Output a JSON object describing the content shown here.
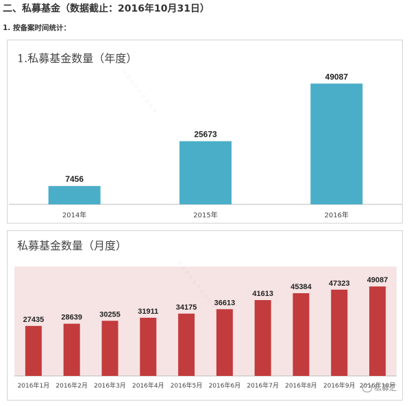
{
  "heading": "二、私募基金（数据截止：2016年10月31日）",
  "subheading": "1. 按备案时间统计：",
  "colors": {
    "annual_bar": "#4aaec9",
    "monthly_bar": "#c23b3d",
    "monthly_bg": "#f6e3e3"
  },
  "chart_data": [
    {
      "type": "bar",
      "title": "1.私募基金数量（年度）",
      "categories": [
        "2014年",
        "2015年",
        "2016年"
      ],
      "values": [
        7456,
        25673,
        49087
      ],
      "xlabel": "",
      "ylabel": "",
      "ylim": [
        0,
        55000
      ],
      "grid": false
    },
    {
      "type": "bar",
      "title": "私募基金数量（月度）",
      "categories": [
        "2016年1月",
        "2016年2月",
        "2016年3月",
        "2016年4月",
        "2016年5月",
        "2016年6月",
        "2016年7月",
        "2016年8月",
        "2016年9月",
        "2016年10月"
      ],
      "values": [
        27435,
        28639,
        30255,
        31911,
        34175,
        36613,
        41613,
        45384,
        47323,
        49087
      ],
      "xlabel": "",
      "ylabel": "",
      "ylim": [
        0,
        60000
      ],
      "grid": false
    }
  ]
}
